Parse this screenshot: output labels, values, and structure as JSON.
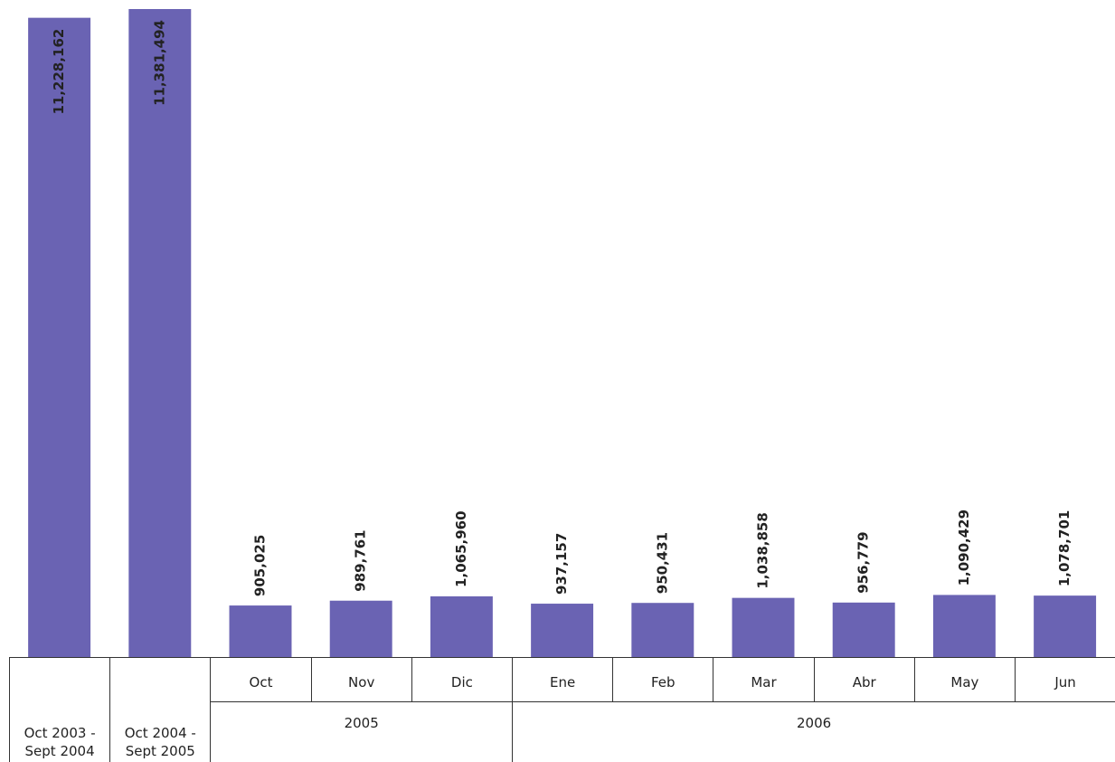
{
  "chart_data": {
    "type": "bar",
    "categories": [
      "Oct 2003 - Sept 2004",
      "Oct 2004 - Sept 2005",
      "Oct",
      "Nov",
      "Dic",
      "Ene",
      "Feb",
      "Mar",
      "Abr",
      "May",
      "Jun"
    ],
    "values": [
      11228162,
      11381494,
      905025,
      989761,
      1065960,
      937157,
      950431,
      1038858,
      956779,
      1090429,
      1078701
    ],
    "value_labels": [
      "11,228,162",
      "11,381,494",
      "905,025",
      "989,761",
      "1,065,960",
      "937,157",
      "950,431",
      "1,038,858",
      "956,779",
      "1,090,429",
      "1,078,701"
    ],
    "category_groups": [
      {
        "label": "2005",
        "from": 2,
        "to": 4
      },
      {
        "label": "2006",
        "from": 5,
        "to": 10
      }
    ],
    "color": "#6a63b3"
  }
}
